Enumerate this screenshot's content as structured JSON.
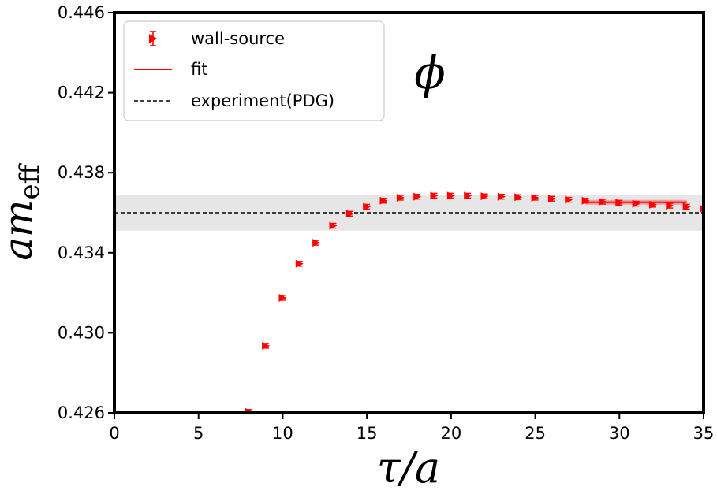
{
  "chart_data": {
    "type": "scatter",
    "xlabel": "τ/a",
    "ylabel_main": "am",
    "ylabel_sub": "eff",
    "annotation": "ϕ",
    "xlim": [
      0,
      35
    ],
    "ylim": [
      0.426,
      0.446
    ],
    "xticks": [
      0,
      5,
      10,
      15,
      20,
      25,
      30,
      35
    ],
    "yticks": [
      0.426,
      0.43,
      0.434,
      0.438,
      0.442,
      0.446
    ],
    "ytick_labels": [
      "0.426",
      "0.430",
      "0.434",
      "0.438",
      "0.442",
      "0.446"
    ],
    "series": [
      {
        "name": "wall-source",
        "kind": "errorbar",
        "color": "#ff0000",
        "x": [
          8,
          9,
          10,
          11,
          12,
          13,
          14,
          15,
          16,
          17,
          18,
          19,
          20,
          21,
          22,
          23,
          24,
          25,
          26,
          27,
          28,
          29,
          30,
          31,
          32,
          33,
          34,
          35
        ],
        "y": [
          0.42605,
          0.42935,
          0.43175,
          0.43345,
          0.4345,
          0.43535,
          0.43595,
          0.4363,
          0.4366,
          0.43675,
          0.4368,
          0.43685,
          0.43685,
          0.43685,
          0.43682,
          0.4368,
          0.43678,
          0.43675,
          0.4367,
          0.43665,
          0.4366,
          0.43655,
          0.4365,
          0.43645,
          0.4364,
          0.43635,
          0.4363,
          0.4362
        ],
        "err": [
          3e-05,
          3e-05,
          3e-05,
          3e-05,
          3e-05,
          3e-05,
          3e-05,
          3e-05,
          3e-05,
          3e-05,
          3e-05,
          3e-05,
          3e-05,
          3e-05,
          3e-05,
          3e-05,
          3e-05,
          3e-05,
          4e-05,
          4e-05,
          5e-05,
          5e-05,
          6e-05,
          6e-05,
          7e-05,
          8e-05,
          9e-05,
          0.0001
        ]
      },
      {
        "name": "fit",
        "kind": "band-line",
        "color": "#ff0000",
        "x_range": [
          28,
          34
        ],
        "y": 0.43652,
        "err": 0.00012
      },
      {
        "name": "experiment(PDG)",
        "kind": "band-line",
        "color": "#000000",
        "band_color": "#e6e6e6",
        "x_range": [
          0,
          35
        ],
        "y": 0.436,
        "err": 0.0009
      }
    ],
    "legend": {
      "position": "top-left",
      "entries": [
        "wall-source",
        "fit",
        "experiment(PDG)"
      ]
    }
  }
}
